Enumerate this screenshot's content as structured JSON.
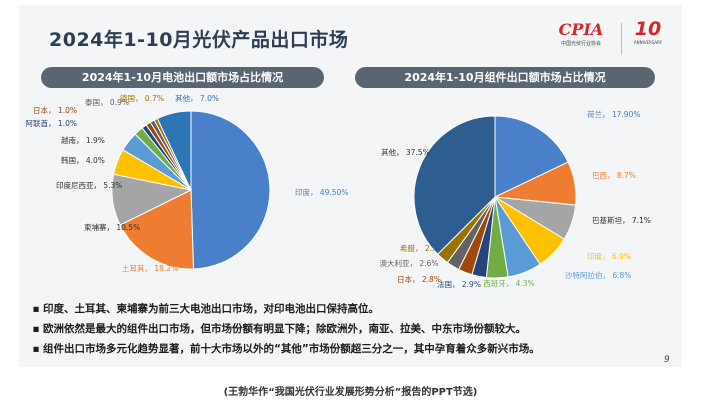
{
  "slide_title": "2024年1-10月光伏产品出口市场",
  "logos": {
    "cpia_mark": "CPIA",
    "cpia_sub": "中国光伏行业协会",
    "anniv_mark": "10",
    "anniv_sub": "ANNIVERSARY"
  },
  "chart_data": [
    {
      "type": "pie",
      "title": "2024年1-10月电池出口额市场占比情况",
      "slices": [
        {
          "label": "印度",
          "value_text": "49.50%",
          "value": 49.5,
          "color": "#4a7fc9"
        },
        {
          "label": "土耳其",
          "value_text": "18.2%",
          "value": 18.2,
          "color": "#ee7d31"
        },
        {
          "label": "柬埔寨",
          "value_text": "10.5%",
          "value": 10.5,
          "color": "#a5a5a5"
        },
        {
          "label": "印度尼西亚",
          "value_text": "5.3%",
          "value": 5.3,
          "color": "#ffc000"
        },
        {
          "label": "韩国",
          "value_text": "4.0%",
          "value": 4.0,
          "color": "#5b9bd5"
        },
        {
          "label": "越南",
          "value_text": "1.9%",
          "value": 1.9,
          "color": "#70ad47"
        },
        {
          "label": "阿联酋",
          "value_text": "1.0%",
          "value": 1.0,
          "color": "#264478"
        },
        {
          "label": "日本",
          "value_text": "1.0%",
          "value": 1.0,
          "color": "#9e480e"
        },
        {
          "label": "泰国",
          "value_text": "0.9%",
          "value": 0.9,
          "color": "#636363"
        },
        {
          "label": "德国",
          "value_text": "0.7%",
          "value": 0.7,
          "color": "#997300"
        },
        {
          "label": "其他",
          "value_text": "7.0%",
          "value": 7.0,
          "color": "#2e75b6"
        }
      ]
    },
    {
      "type": "pie",
      "title": "2024年1-10月组件出口额市场占比情况",
      "slices": [
        {
          "label": "荷兰",
          "value_text": "17.90%",
          "value": 17.9,
          "color": "#4a7fc9"
        },
        {
          "label": "巴西",
          "value_text": "8.7%",
          "value": 8.7,
          "color": "#ee7d31"
        },
        {
          "label": "巴基斯坦",
          "value_text": "7.1%",
          "value": 7.1,
          "color": "#a5a5a5"
        },
        {
          "label": "印度",
          "value_text": "6.9%",
          "value": 6.9,
          "color": "#ffc000"
        },
        {
          "label": "沙特阿拉伯",
          "value_text": "6.8%",
          "value": 6.8,
          "color": "#5b9bd5"
        },
        {
          "label": "西班牙",
          "value_text": "4.3%",
          "value": 4.3,
          "color": "#70ad47"
        },
        {
          "label": "法国",
          "value_text": "2.9%",
          "value": 2.9,
          "color": "#264478"
        },
        {
          "label": "日本",
          "value_text": "2.8%",
          "value": 2.8,
          "color": "#9e480e"
        },
        {
          "label": "澳大利亚",
          "value_text": "2.6%",
          "value": 2.6,
          "color": "#636363"
        },
        {
          "label": "希腊",
          "value_text": "2.5%",
          "value": 2.5,
          "color": "#997300"
        },
        {
          "label": "其他",
          "value_text": "37.5%",
          "value": 37.5,
          "color": "#2e5d8f"
        }
      ]
    }
  ],
  "bullets": [
    "印度、土耳其、柬埔寨为前三大电池出口市场，对印电池出口保持高位。",
    "欧洲依然是最大的组件出口市场，但市场份额有明显下降；除欧洲外，南亚、拉美、中东市场份额较大。",
    "组件出口市场多元化趋势显著，前十大市场以外的“其他”市场份额超三分之一，其中孕育着众多新兴市场。"
  ],
  "bullet_symbol": "▪",
  "page_number": "9",
  "caption": "(王勃华作“我国光伏行业发展形势分析”报告的PPT节选)"
}
